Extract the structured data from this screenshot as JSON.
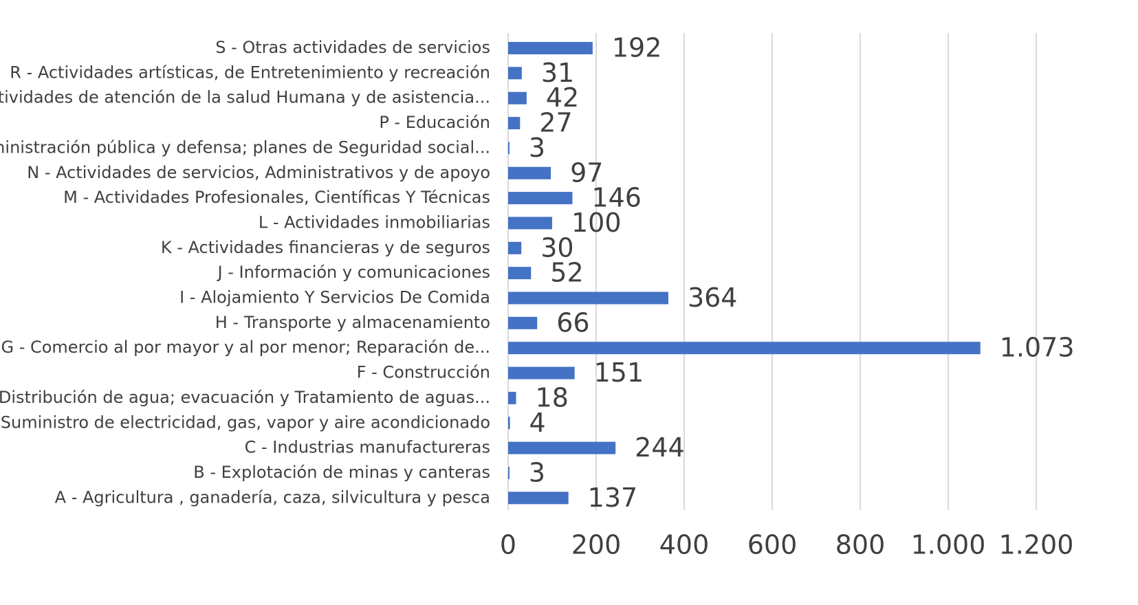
{
  "chart_data": {
    "type": "bar",
    "orientation": "horizontal",
    "title": "",
    "xlabel": "",
    "ylabel": "",
    "xlim": [
      0,
      1200
    ],
    "x_ticks": [
      0,
      200,
      400,
      600,
      800,
      1000,
      1200
    ],
    "x_tick_labels": [
      "0",
      "200",
      "400",
      "600",
      "800",
      "1.000",
      "1.200"
    ],
    "grid": "vertical",
    "legend": "none",
    "bar_color": "#4472c4",
    "categories": [
      "S - Otras actividades de servicios",
      "R - Actividades artísticas, de Entretenimiento y recreación",
      "Q - Actividades de atención de la salud Humana y de asistencia...",
      "P - Educación",
      "O - Administración pública y defensa; planes de Seguridad social...",
      "N - Actividades de servicios, Administrativos y de apoyo",
      "M - Actividades Profesionales, Científicas Y Técnicas",
      "L - Actividades inmobiliarias",
      "K - Actividades financieras y de seguros",
      "J - Información y comunicaciones",
      "I - Alojamiento Y Servicios De Comida",
      "H - Transporte y almacenamiento",
      "G - Comercio al por mayor y al por menor; Reparación de...",
      "F - Construcción",
      "E - Distribución de agua; evacuación y Tratamiento de aguas...",
      "D - Suministro de electricidad, gas, vapor y aire acondicionado",
      "C - Industrias  manufactureras",
      "B - Explotación de minas y canteras",
      "A - Agricultura , ganadería, caza,  silvicultura y pesca"
    ],
    "values": [
      192,
      31,
      42,
      27,
      3,
      97,
      146,
      100,
      30,
      52,
      364,
      66,
      1073,
      151,
      18,
      4,
      244,
      3,
      137
    ],
    "value_labels": [
      "192",
      "31",
      "42",
      "27",
      "3",
      "97",
      "146",
      "100",
      "30",
      "52",
      "364",
      "66",
      "1.073",
      "151",
      "18",
      "4",
      "244",
      "3",
      "137"
    ]
  }
}
